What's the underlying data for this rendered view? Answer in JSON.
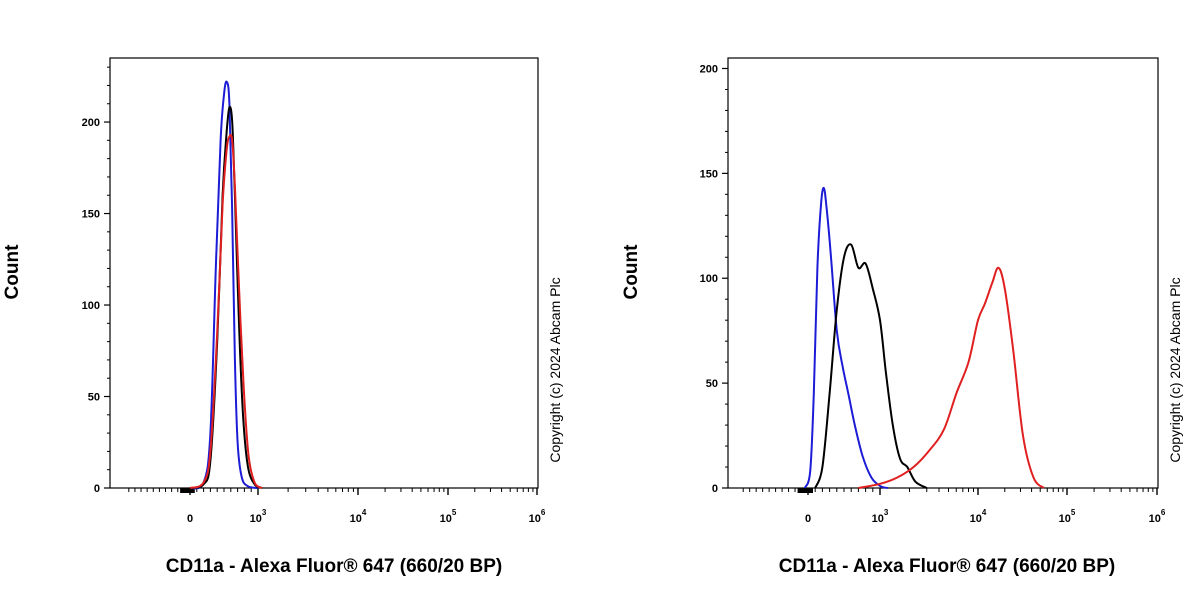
{
  "colors": {
    "blue": "#1c1cd6",
    "black": "#000000",
    "red": "#e02020",
    "axis": "#000000"
  },
  "chart_data": [
    {
      "type": "line",
      "xlabel": "CD11a - Alexa Fluor® 647 (660/20 BP)",
      "ylabel": "Count",
      "x_scale": "biexponential",
      "x_tick_labels": [
        "0",
        "10^3",
        "10^4",
        "10^5",
        "10^6"
      ],
      "y_ticks": [
        0,
        50,
        100,
        150,
        200
      ],
      "ylim": [
        0,
        235
      ],
      "annotation": "Copyright (c) 2024 Abcam Plc",
      "series": [
        {
          "color": "blue",
          "x": [
            0,
            200,
            300,
            380,
            450,
            500,
            540,
            580,
            620,
            660,
            700,
            760,
            850,
            1000
          ],
          "values": [
            0,
            3,
            30,
            120,
            190,
            215,
            222,
            210,
            150,
            70,
            25,
            6,
            1,
            0
          ]
        },
        {
          "color": "black",
          "x": [
            0,
            200,
            300,
            400,
            480,
            540,
            580,
            620,
            660,
            720,
            780,
            850,
            950,
            1100
          ],
          "values": [
            0,
            2,
            15,
            80,
            160,
            195,
            208,
            200,
            160,
            90,
            40,
            12,
            2,
            0
          ]
        },
        {
          "color": "red",
          "x": [
            0,
            200,
            300,
            400,
            480,
            540,
            580,
            620,
            660,
            720,
            790,
            860,
            950,
            1100
          ],
          "values": [
            0,
            3,
            20,
            85,
            155,
            185,
            192,
            190,
            165,
            110,
            55,
            18,
            3,
            0
          ]
        }
      ]
    },
    {
      "type": "line",
      "xlabel": "CD11a - Alexa Fluor® 647 (660/20 BP)",
      "ylabel": "Count",
      "x_scale": "biexponential",
      "x_tick_labels": [
        "0",
        "10^3",
        "10^4",
        "10^5",
        "10^6"
      ],
      "y_ticks": [
        0,
        50,
        100,
        150,
        200
      ],
      "ylim": [
        0,
        205
      ],
      "annotation": "Copyright (c) 2024 Abcam Plc",
      "series": [
        {
          "color": "blue",
          "x": [
            -50,
            30,
            80,
            130,
            180,
            220,
            260,
            320,
            400,
            480,
            560,
            650,
            760,
            880,
            1000,
            1200
          ],
          "values": [
            0,
            8,
            45,
            105,
            135,
            143,
            133,
            110,
            75,
            58,
            45,
            30,
            15,
            5,
            1,
            0
          ]
        },
        {
          "color": "black",
          "x": [
            100,
            200,
            300,
            400,
            500,
            600,
            700,
            800,
            900,
            1000,
            1150,
            1350,
            1600,
            1900,
            2300,
            3000
          ],
          "values": [
            0,
            10,
            45,
            85,
            110,
            116,
            105,
            107,
            95,
            80,
            55,
            30,
            14,
            10,
            3,
            0
          ]
        },
        {
          "color": "red",
          "x": [
            700,
            1000,
            1500,
            2200,
            3200,
            4500,
            6000,
            8000,
            10000,
            12000,
            14500,
            17000,
            20000,
            25000,
            32000,
            42000,
            55000
          ],
          "values": [
            0,
            2,
            5,
            10,
            18,
            28,
            45,
            60,
            80,
            88,
            98,
            105,
            95,
            65,
            25,
            5,
            0
          ]
        }
      ]
    }
  ]
}
